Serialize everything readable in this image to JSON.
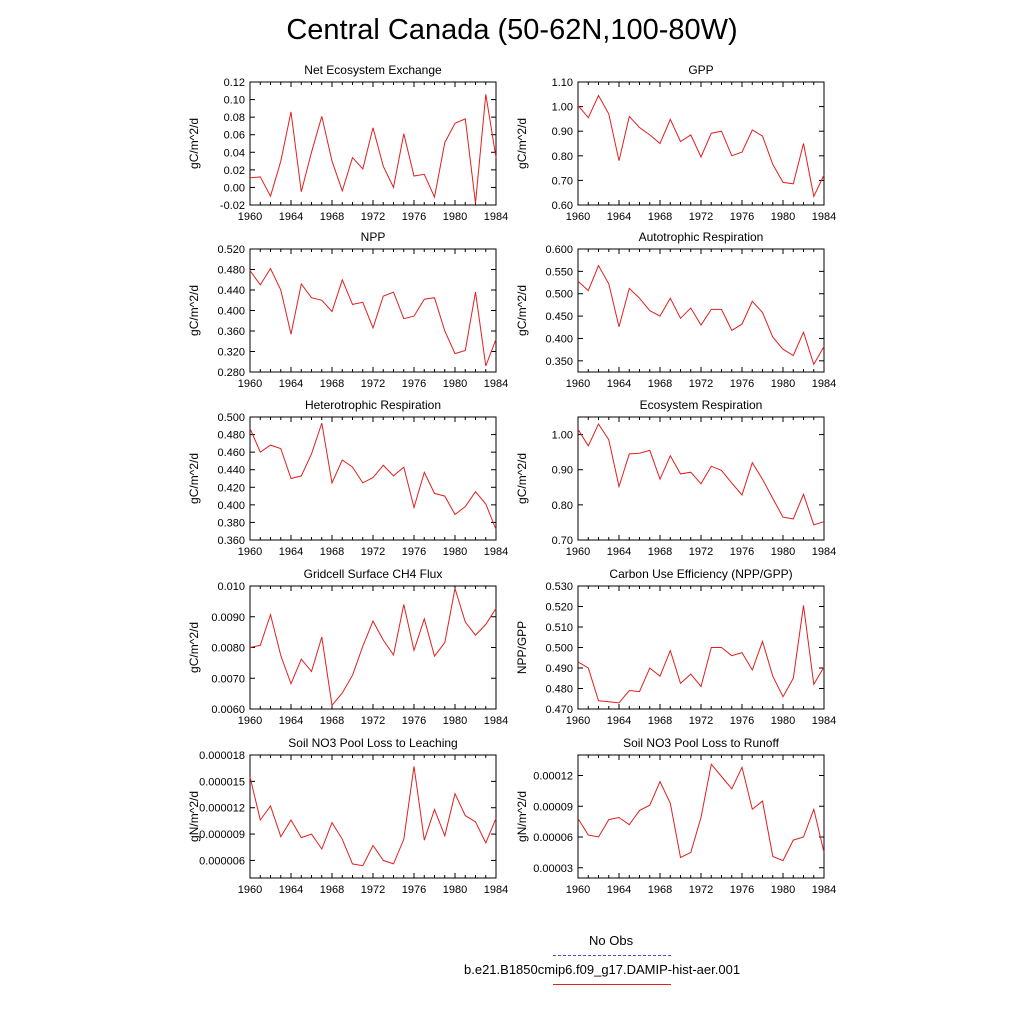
{
  "title": "Central Canada (50-62N,100-80W)",
  "legend": {
    "items": [
      {
        "label": "No Obs",
        "color": "#4a4ad0",
        "style": "dashed"
      },
      {
        "label": "b.e21.B1850cmip6.f09_g17.DAMIP-hist-aer.001",
        "color": "#e02020",
        "style": "solid"
      }
    ]
  },
  "chart_data": [
    {
      "type": "line",
      "title": "Net Ecosystem Exchange",
      "xlabel": "",
      "ylabel": "gC/m^2/d",
      "xlim": [
        1960,
        1984
      ],
      "ylim": [
        -0.02,
        0.12
      ],
      "yticks": [
        "-0.02",
        "0.00",
        "0.02",
        "0.04",
        "0.06",
        "0.08",
        "0.10",
        "0.12"
      ],
      "xticks": [
        "1960",
        "1964",
        "1968",
        "1972",
        "1976",
        "1980",
        "1984"
      ],
      "series": [
        {
          "color": "#e02020",
          "x": [
            1960,
            1961,
            1962,
            1963,
            1964,
            1965,
            1966,
            1967,
            1968,
            1969,
            1970,
            1971,
            1972,
            1973,
            1974,
            1975,
            1976,
            1977,
            1978,
            1979,
            1980,
            1981,
            1982,
            1983,
            1984
          ],
          "values": [
            0.011,
            0.012,
            -0.01,
            0.03,
            0.086,
            -0.005,
            0.04,
            0.081,
            0.03,
            -0.004,
            0.034,
            0.021,
            0.068,
            0.024,
            0.0,
            0.061,
            0.013,
            0.015,
            -0.011,
            0.051,
            0.073,
            0.078,
            -0.018,
            0.106,
            0.034
          ]
        }
      ]
    },
    {
      "type": "line",
      "title": "GPP",
      "xlabel": "",
      "ylabel": "gC/m^2/d",
      "xlim": [
        1960,
        1984
      ],
      "ylim": [
        0.6,
        1.1
      ],
      "yticks": [
        "0.60",
        "0.70",
        "0.80",
        "0.90",
        "1.00",
        "1.10"
      ],
      "xticks": [
        "1960",
        "1964",
        "1968",
        "1972",
        "1976",
        "1980",
        "1984"
      ],
      "series": [
        {
          "color": "#e02020",
          "x": [
            1960,
            1961,
            1962,
            1963,
            1964,
            1965,
            1966,
            1967,
            1968,
            1969,
            1970,
            1971,
            1972,
            1973,
            1974,
            1975,
            1976,
            1977,
            1978,
            1979,
            1980,
            1981,
            1982,
            1983,
            1984
          ],
          "values": [
            1.005,
            0.955,
            1.045,
            0.97,
            0.78,
            0.96,
            0.915,
            0.885,
            0.85,
            0.948,
            0.858,
            0.885,
            0.795,
            0.892,
            0.9,
            0.8,
            0.815,
            0.905,
            0.88,
            0.765,
            0.692,
            0.686,
            0.85,
            0.635,
            0.722
          ]
        }
      ]
    },
    {
      "type": "line",
      "title": "NPP",
      "xlabel": "",
      "ylabel": "gC/m^2/d",
      "xlim": [
        1960,
        1984
      ],
      "ylim": [
        0.28,
        0.52
      ],
      "yticks": [
        "0.280",
        "0.320",
        "0.360",
        "0.400",
        "0.440",
        "0.480",
        "0.520"
      ],
      "xticks": [
        "1960",
        "1964",
        "1968",
        "1972",
        "1976",
        "1980",
        "1984"
      ],
      "series": [
        {
          "color": "#e02020",
          "x": [
            1960,
            1961,
            1962,
            1963,
            1964,
            1965,
            1966,
            1967,
            1968,
            1969,
            1970,
            1971,
            1972,
            1973,
            1974,
            1975,
            1976,
            1977,
            1978,
            1979,
            1980,
            1981,
            1982,
            1983,
            1984
          ],
          "values": [
            0.478,
            0.45,
            0.482,
            0.44,
            0.354,
            0.452,
            0.425,
            0.42,
            0.398,
            0.46,
            0.412,
            0.416,
            0.366,
            0.428,
            0.436,
            0.384,
            0.389,
            0.422,
            0.425,
            0.36,
            0.316,
            0.322,
            0.436,
            0.292,
            0.344
          ]
        }
      ]
    },
    {
      "type": "line",
      "title": "Autotrophic Respiration",
      "xlabel": "",
      "ylabel": "gC/m^2/d",
      "xlim": [
        1960,
        1984
      ],
      "ylim": [
        0.325,
        0.6
      ],
      "yticks": [
        "0.350",
        "0.400",
        "0.450",
        "0.500",
        "0.550",
        "0.600"
      ],
      "xticks": [
        "1960",
        "1964",
        "1968",
        "1972",
        "1976",
        "1980",
        "1984"
      ],
      "series": [
        {
          "color": "#e02020",
          "x": [
            1960,
            1961,
            1962,
            1963,
            1964,
            1965,
            1966,
            1967,
            1968,
            1969,
            1970,
            1971,
            1972,
            1973,
            1974,
            1975,
            1976,
            1977,
            1978,
            1979,
            1980,
            1981,
            1982,
            1983,
            1984
          ],
          "values": [
            0.528,
            0.507,
            0.563,
            0.522,
            0.426,
            0.512,
            0.49,
            0.462,
            0.45,
            0.49,
            0.445,
            0.468,
            0.43,
            0.465,
            0.465,
            0.418,
            0.432,
            0.483,
            0.458,
            0.403,
            0.376,
            0.362,
            0.414,
            0.342,
            0.382
          ]
        }
      ]
    },
    {
      "type": "line",
      "title": "Heterotrophic Respiration",
      "xlabel": "",
      "ylabel": "gC/m^2/d",
      "xlim": [
        1960,
        1984
      ],
      "ylim": [
        0.36,
        0.5
      ],
      "yticks": [
        "0.360",
        "0.380",
        "0.400",
        "0.420",
        "0.440",
        "0.460",
        "0.480",
        "0.500"
      ],
      "xticks": [
        "1960",
        "1964",
        "1968",
        "1972",
        "1976",
        "1980",
        "1984"
      ],
      "series": [
        {
          "color": "#e02020",
          "x": [
            1960,
            1961,
            1962,
            1963,
            1964,
            1965,
            1966,
            1967,
            1968,
            1969,
            1970,
            1971,
            1972,
            1973,
            1974,
            1975,
            1976,
            1977,
            1978,
            1979,
            1980,
            1981,
            1982,
            1983,
            1984
          ],
          "values": [
            0.487,
            0.46,
            0.468,
            0.464,
            0.43,
            0.433,
            0.458,
            0.493,
            0.425,
            0.451,
            0.443,
            0.425,
            0.431,
            0.445,
            0.433,
            0.443,
            0.397,
            0.437,
            0.413,
            0.41,
            0.389,
            0.398,
            0.415,
            0.401,
            0.372
          ]
        }
      ]
    },
    {
      "type": "line",
      "title": "Ecosystem Respiration",
      "xlabel": "",
      "ylabel": "gC/m^2/d",
      "xlim": [
        1960,
        1984
      ],
      "ylim": [
        0.7,
        1.05
      ],
      "yticks": [
        "0.70",
        "0.80",
        "0.90",
        "1.00"
      ],
      "xticks": [
        "1960",
        "1964",
        "1968",
        "1972",
        "1976",
        "1980",
        "1984"
      ],
      "series": [
        {
          "color": "#e02020",
          "x": [
            1960,
            1961,
            1962,
            1963,
            1964,
            1965,
            1966,
            1967,
            1968,
            1969,
            1970,
            1971,
            1972,
            1973,
            1974,
            1975,
            1976,
            1977,
            1978,
            1979,
            1980,
            1981,
            1982,
            1983,
            1984
          ],
          "values": [
            1.015,
            0.968,
            1.03,
            0.985,
            0.852,
            0.945,
            0.947,
            0.955,
            0.873,
            0.94,
            0.888,
            0.893,
            0.86,
            0.91,
            0.898,
            0.862,
            0.828,
            0.92,
            0.873,
            0.818,
            0.765,
            0.76,
            0.83,
            0.743,
            0.752
          ]
        }
      ]
    },
    {
      "type": "line",
      "title": "Gridcell Surface CH4 Flux",
      "xlabel": "",
      "ylabel": "gC/m^2/d",
      "xlim": [
        1960,
        1984
      ],
      "ylim": [
        0.006,
        0.01
      ],
      "yticks": [
        "0.0060",
        "0.0070",
        "0.0080",
        "0.0090",
        "0.010"
      ],
      "xticks": [
        "1960",
        "1964",
        "1968",
        "1972",
        "1976",
        "1980",
        "1984"
      ],
      "series": [
        {
          "color": "#e02020",
          "x": [
            1960,
            1961,
            1962,
            1963,
            1964,
            1965,
            1966,
            1967,
            1968,
            1969,
            1970,
            1971,
            1972,
            1973,
            1974,
            1975,
            1976,
            1977,
            1978,
            1979,
            1980,
            1981,
            1982,
            1983,
            1984
          ],
          "values": [
            0.008,
            0.00807,
            0.00907,
            0.00774,
            0.00682,
            0.00762,
            0.00722,
            0.00834,
            0.00612,
            0.00652,
            0.0071,
            0.00804,
            0.00886,
            0.00824,
            0.00776,
            0.0094,
            0.00791,
            0.00893,
            0.00772,
            0.00816,
            0.00992,
            0.00883,
            0.0084,
            0.00875,
            0.00927
          ]
        }
      ]
    },
    {
      "type": "line",
      "title": "Carbon Use Efficiency (NPP/GPP)",
      "xlabel": "",
      "ylabel": "NPP/GPP",
      "xlim": [
        1960,
        1984
      ],
      "ylim": [
        0.47,
        0.53
      ],
      "yticks": [
        "0.470",
        "0.480",
        "0.490",
        "0.500",
        "0.510",
        "0.520",
        "0.530"
      ],
      "xticks": [
        "1960",
        "1964",
        "1968",
        "1972",
        "1976",
        "1980",
        "1984"
      ],
      "series": [
        {
          "color": "#e02020",
          "x": [
            1960,
            1961,
            1962,
            1963,
            1964,
            1965,
            1966,
            1967,
            1968,
            1969,
            1970,
            1971,
            1972,
            1973,
            1974,
            1975,
            1976,
            1977,
            1978,
            1979,
            1980,
            1981,
            1982,
            1983,
            1984
          ],
          "values": [
            0.493,
            0.49,
            0.474,
            0.4735,
            0.473,
            0.479,
            0.4785,
            0.49,
            0.486,
            0.4985,
            0.4825,
            0.487,
            0.481,
            0.5,
            0.5,
            0.496,
            0.4975,
            0.489,
            0.503,
            0.486,
            0.476,
            0.485,
            0.5205,
            0.482,
            0.4905
          ]
        }
      ]
    },
    {
      "type": "line",
      "title": "Soil NO3 Pool Loss to Leaching",
      "xlabel": "",
      "ylabel": "gN/m^2/d",
      "xlim": [
        1960,
        1984
      ],
      "ylim": [
        4e-06,
        1.8e-05
      ],
      "yticks": [
        "0.000006",
        "0.000009",
        "0.000012",
        "0.000015",
        "0.000018"
      ],
      "xticks": [
        "1960",
        "1964",
        "1968",
        "1972",
        "1976",
        "1980",
        "1984"
      ],
      "series": [
        {
          "color": "#e02020",
          "x": [
            1960,
            1961,
            1962,
            1963,
            1964,
            1965,
            1966,
            1967,
            1968,
            1969,
            1970,
            1971,
            1972,
            1973,
            1974,
            1975,
            1976,
            1977,
            1978,
            1979,
            1980,
            1981,
            1982,
            1983,
            1984
          ],
          "values": [
            1.55e-05,
            1.06e-05,
            1.22e-05,
            8.7e-06,
            1.06e-05,
            8.6e-06,
            9e-06,
            7.3e-06,
            1.03e-05,
            8.4e-06,
            5.6e-06,
            5.4e-06,
            7.7e-06,
            6e-06,
            5.6e-06,
            8.4e-06,
            1.67e-05,
            8.3e-06,
            1.18e-05,
            8.8e-06,
            1.36e-05,
            1.11e-05,
            1.04e-05,
            8e-06,
            1.08e-05
          ]
        }
      ]
    },
    {
      "type": "line",
      "title": "Soil NO3 Pool Loss to Runoff",
      "xlabel": "",
      "ylabel": "gN/m^2/d",
      "xlim": [
        1960,
        1984
      ],
      "ylim": [
        2e-05,
        0.00014
      ],
      "yticks": [
        "0.00003",
        "0.00006",
        "0.00009",
        "0.00012"
      ],
      "xticks": [
        "1960",
        "1964",
        "1968",
        "1972",
        "1976",
        "1980",
        "1984"
      ],
      "series": [
        {
          "color": "#e02020",
          "x": [
            1960,
            1961,
            1962,
            1963,
            1964,
            1965,
            1966,
            1967,
            1968,
            1969,
            1970,
            1971,
            1972,
            1973,
            1974,
            1975,
            1976,
            1977,
            1978,
            1979,
            1980,
            1981,
            1982,
            1983,
            1984
          ],
          "values": [
            7.8e-05,
            6.2e-05,
            6e-05,
            7.7e-05,
            7.9e-05,
            7.2e-05,
            8.6e-05,
            9.1e-05,
            0.000114,
            9.3e-05,
            4e-05,
            4.5e-05,
            7.9e-05,
            0.000131,
            0.000119,
            0.000107,
            0.000128,
            8.7e-05,
            9.5e-05,
            4.1e-05,
            3.7e-05,
            5.7e-05,
            6e-05,
            8.7e-05,
            4.5e-05
          ]
        }
      ]
    }
  ]
}
